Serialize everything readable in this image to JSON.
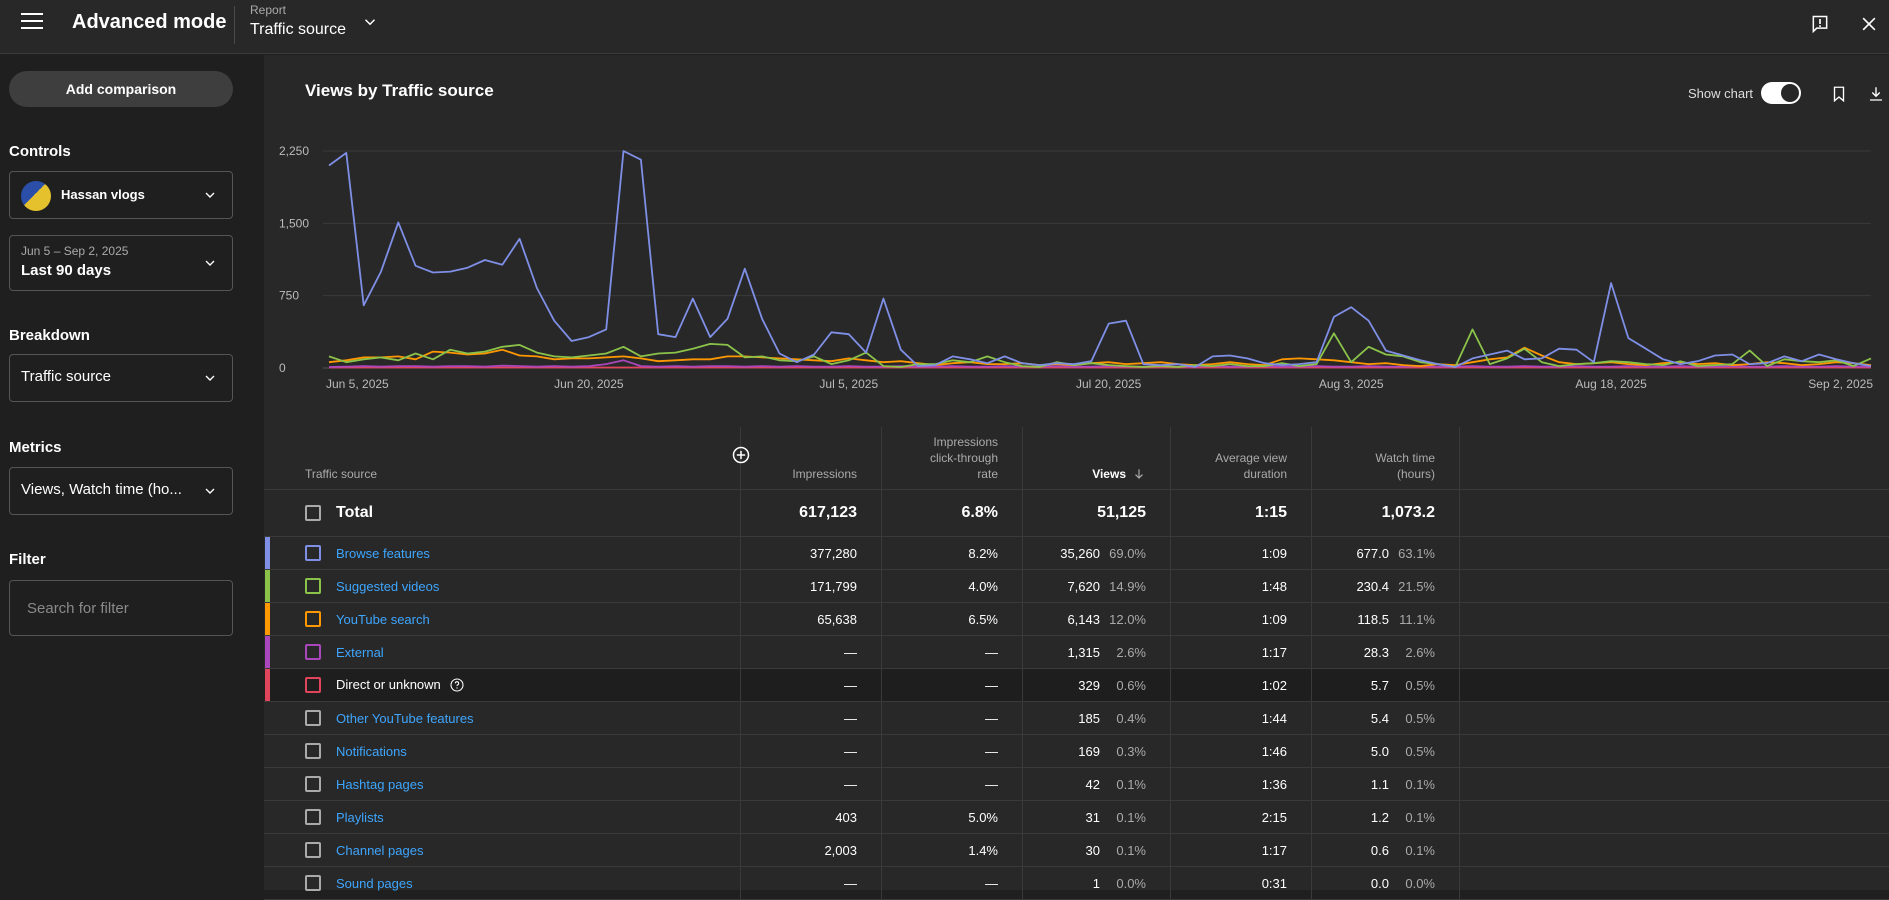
{
  "header": {
    "title": "Advanced mode",
    "report_label": "Report",
    "report_value": "Traffic source"
  },
  "sidebar": {
    "add_comparison": "Add comparison",
    "controls_title": "Controls",
    "channel": "Hassan vlogs",
    "date_range": "Jun 5 – Sep 2, 2025",
    "date_preset": "Last 90 days",
    "breakdown_title": "Breakdown",
    "breakdown_value": "Traffic source",
    "metrics_title": "Metrics",
    "metrics_value": "Views, Watch time (ho...",
    "filter_title": "Filter",
    "search_placeholder": "Search for filter"
  },
  "chart_header": {
    "title": "Views by Traffic source",
    "show_chart": "Show chart"
  },
  "chart_data": {
    "type": "line",
    "ylim": [
      0,
      2250
    ],
    "yticks": [
      0,
      750,
      1500,
      2250
    ],
    "ytick_labels": [
      "0",
      "750",
      "1,500",
      "2,250"
    ],
    "x_labels": [
      "Jun 5, 2025",
      "Jun 20, 2025",
      "Jul 5, 2025",
      "Jul 20, 2025",
      "Aug 3, 2025",
      "Aug 18, 2025",
      "Sep 2, 2025"
    ],
    "x_label_days": [
      0,
      15,
      30,
      45,
      59,
      74,
      89
    ],
    "grid": true,
    "series": [
      {
        "color": "#7f8fe6",
        "values": [
          2100,
          2230,
          650,
          1000,
          1510,
          1060,
          990,
          1000,
          1040,
          1120,
          1070,
          1340,
          830,
          490,
          280,
          320,
          400,
          2250,
          2160,
          350,
          320,
          720,
          320,
          510,
          1030,
          510,
          150,
          60,
          140,
          370,
          350,
          160,
          720,
          190,
          20,
          30,
          120,
          90,
          50,
          120,
          50,
          30,
          50,
          40,
          70,
          460,
          490,
          40,
          30,
          40,
          10,
          120,
          130,
          100,
          50,
          30,
          40,
          60,
          530,
          630,
          490,
          180,
          130,
          80,
          40,
          10,
          100,
          140,
          180,
          90,
          100,
          200,
          190,
          60,
          880,
          310,
          200,
          90,
          40,
          70,
          130,
          140,
          40,
          50,
          120,
          70,
          140,
          90,
          50,
          20
        ]
      },
      {
        "color": "#8bc34a",
        "values": [
          120,
          60,
          90,
          110,
          80,
          150,
          90,
          190,
          150,
          170,
          220,
          240,
          160,
          120,
          110,
          130,
          150,
          220,
          120,
          150,
          160,
          200,
          250,
          240,
          110,
          120,
          80,
          70,
          120,
          40,
          80,
          160,
          20,
          10,
          40,
          40,
          80,
          60,
          120,
          60,
          20,
          10,
          60,
          30,
          50,
          30,
          20,
          10,
          20,
          10,
          30,
          20,
          40,
          20,
          20,
          50,
          20,
          40,
          360,
          60,
          220,
          140,
          120,
          60,
          40,
          10,
          400,
          40,
          100,
          200,
          60,
          20,
          40,
          50,
          70,
          60,
          40,
          30,
          70,
          20,
          30,
          40,
          180,
          20,
          90,
          70,
          60,
          80,
          20,
          100
        ]
      },
      {
        "color": "#ff9800",
        "values": [
          60,
          80,
          110,
          110,
          120,
          90,
          170,
          160,
          140,
          150,
          190,
          130,
          120,
          90,
          100,
          100,
          110,
          120,
          100,
          70,
          80,
          90,
          90,
          120,
          120,
          110,
          100,
          90,
          80,
          70,
          100,
          80,
          60,
          70,
          50,
          30,
          50,
          60,
          40,
          40,
          50,
          30,
          40,
          30,
          50,
          60,
          40,
          50,
          60,
          40,
          30,
          40,
          60,
          40,
          30,
          90,
          100,
          90,
          80,
          60,
          40,
          50,
          30,
          20,
          40,
          30,
          60,
          90,
          110,
          210,
          130,
          60,
          40,
          50,
          60,
          40,
          30,
          50,
          60,
          40,
          50,
          30,
          40,
          60,
          50,
          30,
          40,
          60,
          50,
          30
        ]
      },
      {
        "color": "#ab47bc",
        "values": [
          10,
          15,
          20,
          15,
          20,
          20,
          15,
          20,
          20,
          15,
          25,
          20,
          15,
          20,
          15,
          20,
          40,
          80,
          20,
          15,
          20,
          15,
          20,
          20,
          15,
          20,
          15,
          20,
          15,
          15,
          20,
          15,
          15,
          20,
          15,
          15,
          20,
          15,
          15,
          20,
          15,
          15,
          20,
          15,
          15,
          20,
          15,
          15,
          20,
          15,
          15,
          20,
          15,
          15,
          20,
          15,
          15,
          20,
          15,
          15,
          20,
          15,
          15,
          20,
          15,
          15,
          20,
          15,
          15,
          20,
          15,
          15,
          20,
          15,
          15,
          20,
          15,
          15,
          20,
          15,
          15,
          20,
          15,
          15,
          20,
          15,
          15,
          20,
          15,
          15
        ]
      },
      {
        "color": "#e0455b",
        "values": [
          5,
          5,
          5,
          5,
          5,
          5,
          5,
          5,
          5,
          5,
          5,
          5,
          5,
          5,
          5,
          5,
          5,
          5,
          5,
          5,
          5,
          5,
          5,
          5,
          5,
          5,
          5,
          5,
          5,
          5,
          5,
          5,
          5,
          5,
          5,
          5,
          5,
          5,
          5,
          5,
          5,
          5,
          5,
          5,
          5,
          5,
          5,
          5,
          5,
          5,
          5,
          5,
          5,
          5,
          5,
          5,
          5,
          5,
          5,
          5,
          5,
          5,
          5,
          5,
          5,
          5,
          5,
          5,
          5,
          5,
          5,
          5,
          5,
          5,
          5,
          5,
          5,
          5,
          5,
          5,
          5,
          5,
          5,
          5,
          5,
          5,
          5,
          5,
          5,
          5
        ]
      }
    ]
  },
  "table": {
    "headers": {
      "name": "Traffic source",
      "impressions": "Impressions",
      "ctr": "Impressions click-through rate",
      "views": "Views",
      "avd": "Average view duration",
      "watch_time": "Watch time (hours)"
    },
    "total": {
      "label": "Total",
      "impressions": "617,123",
      "ctr": "6.8%",
      "views": "51,125",
      "avd": "1:15",
      "watch_time": "1,073.2"
    },
    "rows": [
      {
        "name": "Browse features",
        "color": "#7f8fe6",
        "link": true,
        "impressions": "377,280",
        "ctr": "8.2%",
        "views": "35,260",
        "views_pct": "69.0%",
        "avd": "1:09",
        "wt": "677.0",
        "wt_pct": "63.1%"
      },
      {
        "name": "Suggested videos",
        "color": "#8bc34a",
        "link": true,
        "impressions": "171,799",
        "ctr": "4.0%",
        "views": "7,620",
        "views_pct": "14.9%",
        "avd": "1:48",
        "wt": "230.4",
        "wt_pct": "21.5%"
      },
      {
        "name": "YouTube search",
        "color": "#ff9800",
        "link": true,
        "impressions": "65,638",
        "ctr": "6.5%",
        "views": "6,143",
        "views_pct": "12.0%",
        "avd": "1:09",
        "wt": "118.5",
        "wt_pct": "11.1%"
      },
      {
        "name": "External",
        "color": "#ab47bc",
        "link": true,
        "impressions": "—",
        "ctr": "—",
        "views": "1,315",
        "views_pct": "2.6%",
        "avd": "1:17",
        "wt": "28.3",
        "wt_pct": "2.6%"
      },
      {
        "name": "Direct or unknown",
        "color": "#e0455b",
        "link": false,
        "help": true,
        "impressions": "—",
        "ctr": "—",
        "views": "329",
        "views_pct": "0.6%",
        "avd": "1:02",
        "wt": "5.7",
        "wt_pct": "0.5%"
      },
      {
        "name": "Other YouTube features",
        "color": "",
        "link": true,
        "impressions": "—",
        "ctr": "—",
        "views": "185",
        "views_pct": "0.4%",
        "avd": "1:44",
        "wt": "5.4",
        "wt_pct": "0.5%"
      },
      {
        "name": "Notifications",
        "color": "",
        "link": true,
        "impressions": "—",
        "ctr": "—",
        "views": "169",
        "views_pct": "0.3%",
        "avd": "1:46",
        "wt": "5.0",
        "wt_pct": "0.5%"
      },
      {
        "name": "Hashtag pages",
        "color": "",
        "link": true,
        "impressions": "—",
        "ctr": "—",
        "views": "42",
        "views_pct": "0.1%",
        "avd": "1:36",
        "wt": "1.1",
        "wt_pct": "0.1%"
      },
      {
        "name": "Playlists",
        "color": "",
        "link": true,
        "impressions": "403",
        "ctr": "5.0%",
        "views": "31",
        "views_pct": "0.1%",
        "avd": "2:15",
        "wt": "1.2",
        "wt_pct": "0.1%"
      },
      {
        "name": "Channel pages",
        "color": "",
        "link": true,
        "impressions": "2,003",
        "ctr": "1.4%",
        "views": "30",
        "views_pct": "0.1%",
        "avd": "1:17",
        "wt": "0.6",
        "wt_pct": "0.1%"
      },
      {
        "name": "Sound pages",
        "color": "",
        "link": true,
        "impressions": "—",
        "ctr": "—",
        "views": "1",
        "views_pct": "0.0%",
        "avd": "0:31",
        "wt": "0.0",
        "wt_pct": "0.0%"
      }
    ],
    "highlighted_row": 4
  },
  "icons": {
    "menu": "hamburger-icon",
    "report_dropdown": "chevron-down-icon",
    "feedback": "feedback-icon",
    "close": "close-icon",
    "bookmark": "bookmark-icon",
    "download": "download-icon",
    "add_column": "add-circle-icon",
    "sort": "arrow-down-icon",
    "help": "help-icon"
  }
}
